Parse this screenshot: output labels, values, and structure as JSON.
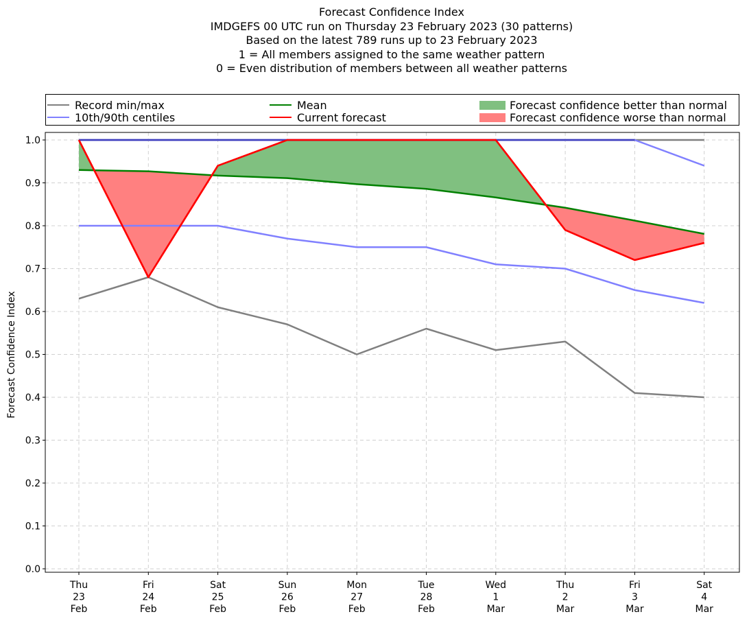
{
  "chart_data": {
    "type": "line",
    "title_lines": [
      "Forecast Confidence Index",
      "IMDGEFS 00 UTC run on Thursday 23 February 2023 (30 patterns)",
      "Based on the latest 789 runs up to 23 February 2023",
      "1 = All members assigned to the same weather pattern",
      "0 = Even distribution of members between all weather patterns"
    ],
    "ylabel": "Forecast Confidence Index",
    "ylim": [
      0,
      1.0
    ],
    "yticks": [
      "0.0",
      "0.1",
      "0.2",
      "0.3",
      "0.4",
      "0.5",
      "0.6",
      "0.7",
      "0.8",
      "0.9",
      "1.0"
    ],
    "grid": true,
    "legend_position": "top",
    "categories": [
      [
        "Thu",
        "23",
        "Feb"
      ],
      [
        "Fri",
        "24",
        "Feb"
      ],
      [
        "Sat",
        "25",
        "Feb"
      ],
      [
        "Sun",
        "26",
        "Feb"
      ],
      [
        "Mon",
        "27",
        "Feb"
      ],
      [
        "Tue",
        "28",
        "Feb"
      ],
      [
        "Wed",
        "1",
        "Mar"
      ],
      [
        "Thu",
        "2",
        "Mar"
      ],
      [
        "Fri",
        "3",
        "Mar"
      ],
      [
        "Sat",
        "4",
        "Mar"
      ]
    ],
    "series": [
      {
        "key": "record_min",
        "values": [
          0.63,
          0.68,
          0.61,
          0.57,
          0.5,
          0.56,
          0.51,
          0.53,
          0.41,
          0.4
        ]
      },
      {
        "key": "record_max",
        "values": [
          1.0,
          1.0,
          1.0,
          1.0,
          1.0,
          1.0,
          1.0,
          1.0,
          1.0,
          1.0
        ]
      },
      {
        "key": "p10",
        "values": [
          0.8,
          0.8,
          0.8,
          0.77,
          0.75,
          0.75,
          0.71,
          0.7,
          0.65,
          0.62
        ]
      },
      {
        "key": "p90",
        "values": [
          1.0,
          1.0,
          1.0,
          1.0,
          1.0,
          1.0,
          1.0,
          1.0,
          1.0,
          0.94
        ]
      },
      {
        "key": "mean",
        "values": [
          0.93,
          0.927,
          0.917,
          0.911,
          0.897,
          0.886,
          0.866,
          0.842,
          0.812,
          0.781
        ]
      },
      {
        "key": "current",
        "values": [
          1.0,
          0.68,
          0.94,
          1.0,
          1.0,
          1.0,
          1.0,
          0.79,
          0.72,
          0.76
        ]
      }
    ],
    "legend": [
      {
        "label": "Record min/max",
        "kind": "line",
        "color": "#808080"
      },
      {
        "label": "Mean",
        "kind": "line",
        "color": "#008000"
      },
      {
        "label": "Forecast confidence better than normal",
        "kind": "patch",
        "color": "#80c080"
      },
      {
        "label": "10th/90th centiles",
        "kind": "line",
        "color": "#8080ff"
      },
      {
        "label": "Current forecast",
        "kind": "line",
        "color": "#ff0000"
      },
      {
        "label": "Forecast confidence worse than normal",
        "kind": "patch",
        "color": "#ff8080"
      }
    ],
    "colors": {
      "record": "#808080",
      "centiles": "#8080ff",
      "centile_overlap": "#4040c0",
      "mean": "#008000",
      "current": "#ff0000",
      "better_fill": "#80c080",
      "worse_fill": "#ff8080",
      "grid": "#d0d0d0"
    }
  }
}
